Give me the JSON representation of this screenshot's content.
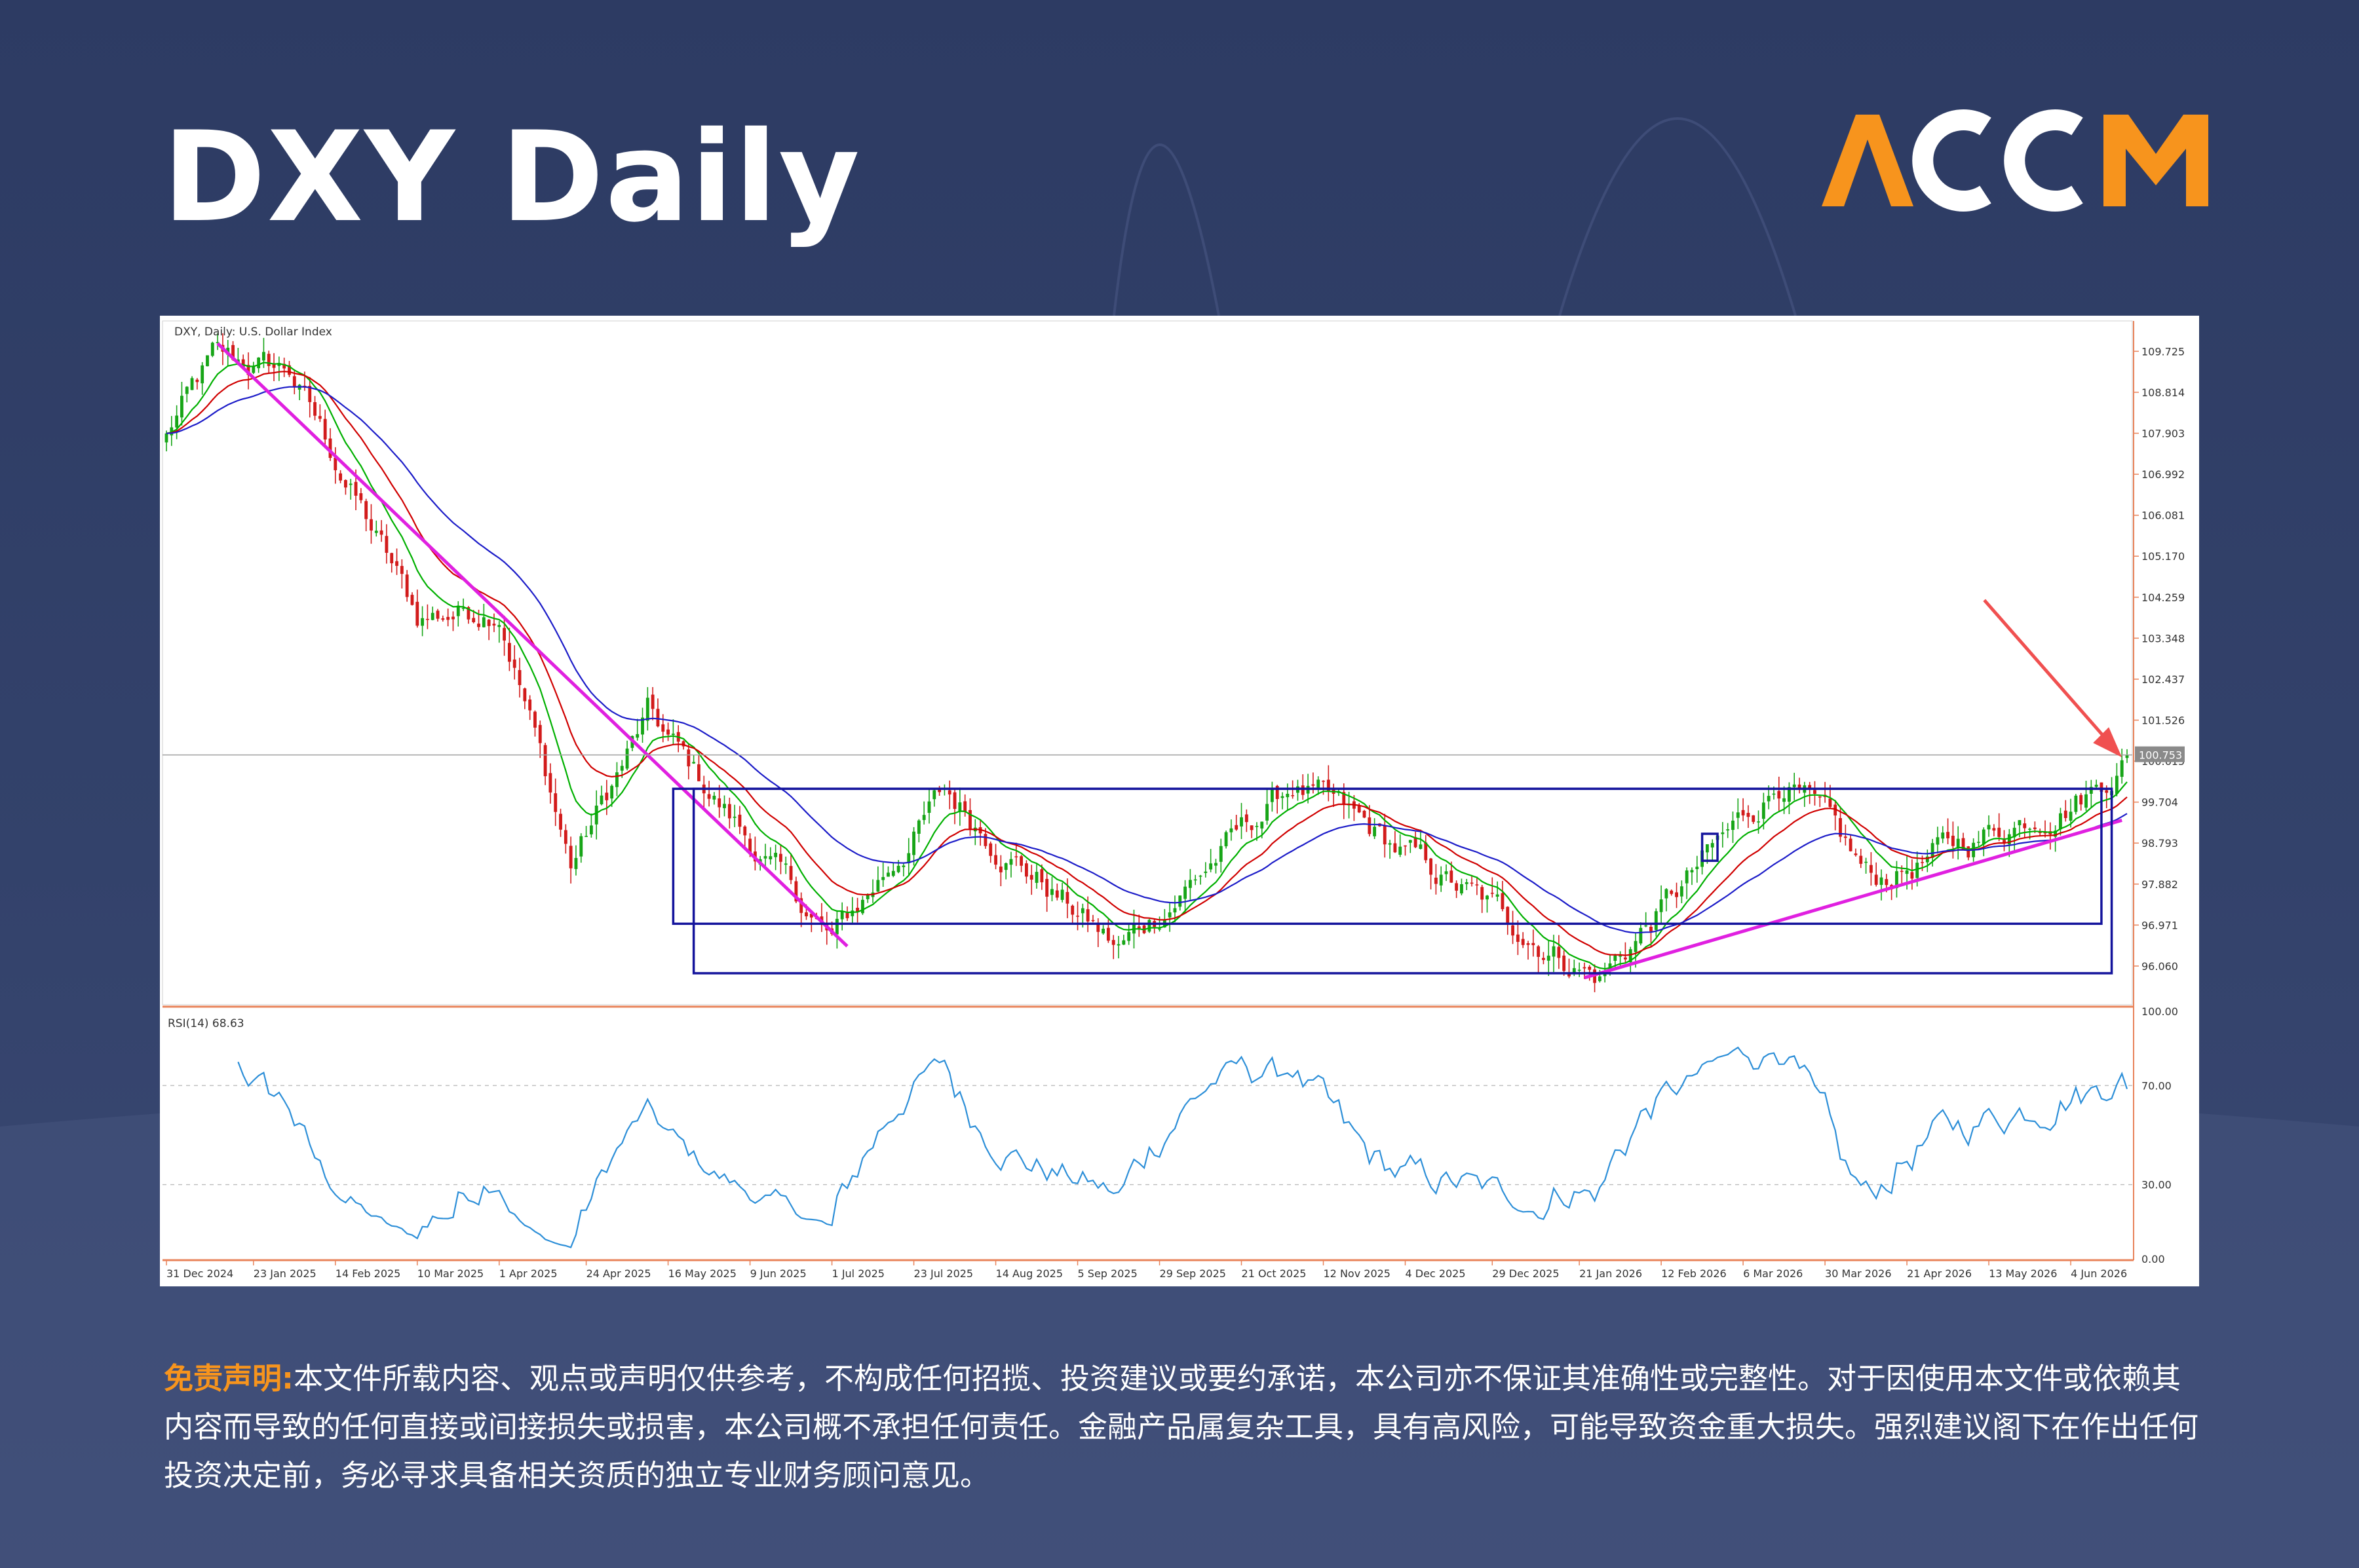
{
  "page": {
    "title": "DXY Daily",
    "brand": "ACCM",
    "disclaimer_label": "免责声明:",
    "disclaimer_text": "本文件所载内容、观点或声明仅供参考，不构成任何招揽、投资建议或要约承诺，本公司亦不保证其准确性或完整性。对于因使用本文件或依赖其内容而导致的任何直接或间接损失或损害，本公司概不承担任何责任。金融产品属复杂工具，具有高风险，可能导致资金重大损失。强烈建议阁下在作出任何投资决定前，务必寻求具备相关资质的独立专业财务顾问意见。",
    "colors": {
      "brand_orange": "#f7941d",
      "brand_white": "#ffffff"
    }
  },
  "chart_data": [
    {
      "type": "candlestick",
      "title": "DXY, Daily: U.S. Dollar Index",
      "ylim": [
        95.2,
        110.4
      ],
      "y_ticks": [
        "109.725",
        "108.814",
        "107.903",
        "106.992",
        "106.081",
        "105.170",
        "104.259",
        "103.348",
        "102.437",
        "101.526",
        "100.615",
        "99.704",
        "98.793",
        "97.882",
        "96.971",
        "96.060"
      ],
      "current_price": "100.753",
      "x_ticks": [
        "31 Dec 2024",
        "23 Jan 2025",
        "14 Feb 2025",
        "10 Mar 2025",
        "1 Apr 2025",
        "24 Apr 2025",
        "16 May 2025",
        "9 Jun 2025",
        "1 Jul 2025",
        "23 Jul 2025",
        "14 Aug 2025",
        "5 Sep 2025",
        "29 Sep 2025",
        "21 Oct 2025",
        "12 Nov 2025",
        "4 Dec 2025",
        "29 Dec 2025",
        "21 Jan 2026",
        "12 Feb 2026",
        "6 Mar 2026",
        "30 Mar 2026",
        "21 Apr 2026",
        "13 May 2026",
        "4 Jun 2026"
      ],
      "key_closes": [
        {
          "date": "31 Dec 2024",
          "value": 107.9
        },
        {
          "date": "13 Jan 2025",
          "value": 109.5
        },
        {
          "date": "3 Feb 2025",
          "value": 109.3
        },
        {
          "date": "10 Mar 2025",
          "value": 103.8
        },
        {
          "date": "1 Apr 2025",
          "value": 104.1
        },
        {
          "date": "21 Apr 2025",
          "value": 98.3
        },
        {
          "date": "12 May 2025",
          "value": 101.6
        },
        {
          "date": "1 Jul 2025",
          "value": 96.6
        },
        {
          "date": "31 Jul 2025",
          "value": 99.9
        },
        {
          "date": "17 Sep 2025",
          "value": 96.4
        },
        {
          "date": "4 Nov 2025",
          "value": 100.1
        },
        {
          "date": "27 Jan 2026",
          "value": 95.8
        },
        {
          "date": "18 Mar 2026",
          "value": 100.3
        },
        {
          "date": "10 Apr 2026",
          "value": 97.9
        },
        {
          "date": "10 Jun 2026",
          "value": 100.0
        },
        {
          "date": "19 Jun 2026",
          "value": 100.75
        }
      ],
      "annotations": {
        "downtrend_line": {
          "from": {
            "date": "14 Jan 2025",
            "value": 109.9
          },
          "to": {
            "date": "4 Jul 2025",
            "value": 96.5
          }
        },
        "uptrend_line": {
          "from": {
            "date": "22 Jan 2026",
            "value": 95.8
          },
          "to": {
            "date": "18 Jun 2026",
            "value": 99.3
          }
        },
        "range_box_inner": {
          "from_date": "19 May 2025",
          "to_date": "12 Jun 2026",
          "high": 100.0,
          "low": 97.0
        },
        "range_box_outer": {
          "from_date": "23 May 2025",
          "to_date": "16 Jun 2026",
          "high": 100.0,
          "low": 95.9
        },
        "small_box": {
          "from_date": "24 Feb 2026",
          "to_date": "27 Feb 2026",
          "high": 99.0,
          "low": 98.4
        },
        "arrow": {
          "points_to": {
            "date": "18 Jun 2026",
            "value": 100.7
          }
        }
      },
      "moving_averages": [
        {
          "color": "#00b000"
        },
        {
          "color": "#d00000"
        },
        {
          "color": "#1c1cc8"
        }
      ]
    },
    {
      "type": "line",
      "title": "RSI(14) 68.63",
      "ylim": [
        0,
        100
      ],
      "y_ticks": [
        "100.00",
        "70.00",
        "30.00",
        "0.00"
      ],
      "levels": [
        70,
        30
      ],
      "last_value": 68.63
    }
  ]
}
